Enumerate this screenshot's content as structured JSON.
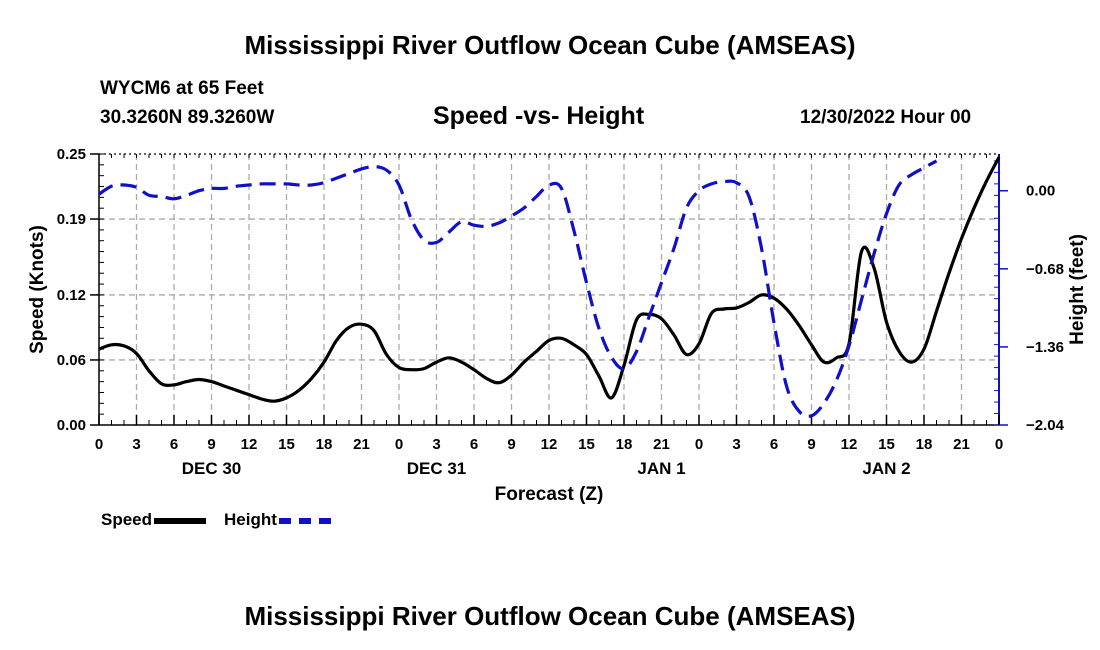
{
  "page": {
    "title_top": "Mississippi River Outflow Ocean Cube (AMSEAS)",
    "title_bottom": "Mississippi River Outflow Ocean Cube (AMSEAS)",
    "station": "WYCM6 at 65 Feet",
    "coords": "30.3260N  89.3260W",
    "subtitle": "Speed -vs- Height",
    "datetime": "12/30/2022 Hour 00"
  },
  "legend": {
    "speed_label": "Speed",
    "height_label": "Height"
  },
  "colors": {
    "speed": "#000000",
    "height": "#1010c8",
    "grid": "#aaaaaa"
  },
  "chart_data": {
    "type": "line",
    "title": "Speed -vs- Height",
    "xlabel": "Forecast (Z)",
    "ylabel": "Speed (Knots)",
    "y2label": "Height (feet)",
    "x_range": [
      0,
      72
    ],
    "ylim": [
      0,
      0.25
    ],
    "y2lim": [
      -2.04,
      0.32
    ],
    "y_ticks": [
      0.0,
      0.06,
      0.12,
      0.19,
      0.25
    ],
    "y_tick_labels": [
      "0.00",
      "0.06",
      "0.12",
      "0.19",
      "0.25"
    ],
    "y2_ticks": [
      0.0,
      -0.68,
      -1.36,
      -2.04
    ],
    "y2_tick_labels": [
      "0.00",
      "−0.68",
      "−1.36",
      "−2.04"
    ],
    "x_ticks": [
      0,
      3,
      6,
      9,
      12,
      15,
      18,
      21,
      24,
      27,
      30,
      33,
      36,
      39,
      42,
      45,
      48,
      51,
      54,
      57,
      60,
      63,
      66,
      69,
      72
    ],
    "x_tick_labels": [
      "0",
      "3",
      "6",
      "9",
      "12",
      "15",
      "18",
      "21",
      "0",
      "3",
      "6",
      "9",
      "12",
      "15",
      "18",
      "21",
      "0",
      "3",
      "6",
      "9",
      "12",
      "15",
      "18",
      "21",
      "0"
    ],
    "day_labels": [
      {
        "x": 9,
        "label": "DEC 30"
      },
      {
        "x": 27,
        "label": "DEC 31"
      },
      {
        "x": 45,
        "label": "JAN 1"
      },
      {
        "x": 63,
        "label": "JAN 2"
      }
    ],
    "series": [
      {
        "name": "Speed",
        "axis": "left",
        "style": "solid",
        "points": [
          [
            0,
            0.07
          ],
          [
            1,
            0.074
          ],
          [
            2,
            0.073
          ],
          [
            3,
            0.066
          ],
          [
            4,
            0.05
          ],
          [
            5,
            0.038
          ],
          [
            6,
            0.037
          ],
          [
            7,
            0.04
          ],
          [
            8,
            0.042
          ],
          [
            9,
            0.04
          ],
          [
            10,
            0.036
          ],
          [
            11,
            0.032
          ],
          [
            12,
            0.028
          ],
          [
            13,
            0.024
          ],
          [
            14,
            0.022
          ],
          [
            15,
            0.025
          ],
          [
            16,
            0.032
          ],
          [
            17,
            0.043
          ],
          [
            18,
            0.058
          ],
          [
            19,
            0.078
          ],
          [
            20,
            0.09
          ],
          [
            21,
            0.093
          ],
          [
            22,
            0.087
          ],
          [
            23,
            0.065
          ],
          [
            24,
            0.053
          ],
          [
            25,
            0.051
          ],
          [
            26,
            0.052
          ],
          [
            27,
            0.058
          ],
          [
            28,
            0.062
          ],
          [
            29,
            0.058
          ],
          [
            30,
            0.051
          ],
          [
            31,
            0.043
          ],
          [
            32,
            0.039
          ],
          [
            33,
            0.046
          ],
          [
            34,
            0.058
          ],
          [
            35,
            0.068
          ],
          [
            36,
            0.078
          ],
          [
            37,
            0.08
          ],
          [
            38,
            0.074
          ],
          [
            39,
            0.065
          ],
          [
            40,
            0.045
          ],
          [
            41,
            0.025
          ],
          [
            42,
            0.055
          ],
          [
            43,
            0.097
          ],
          [
            44,
            0.102
          ],
          [
            45,
            0.098
          ],
          [
            46,
            0.083
          ],
          [
            47,
            0.065
          ],
          [
            48,
            0.075
          ],
          [
            49,
            0.103
          ],
          [
            50,
            0.107
          ],
          [
            51,
            0.108
          ],
          [
            52,
            0.113
          ],
          [
            53,
            0.12
          ],
          [
            54,
            0.117
          ],
          [
            55,
            0.107
          ],
          [
            56,
            0.092
          ],
          [
            57,
            0.074
          ],
          [
            58,
            0.058
          ],
          [
            59,
            0.062
          ],
          [
            60,
            0.075
          ],
          [
            61,
            0.16
          ],
          [
            62,
            0.145
          ],
          [
            63,
            0.095
          ],
          [
            64,
            0.068
          ],
          [
            65,
            0.058
          ],
          [
            66,
            0.07
          ],
          [
            67,
            0.105
          ],
          [
            68,
            0.14
          ],
          [
            69,
            0.172
          ],
          [
            70,
            0.2
          ],
          [
            71,
            0.225
          ],
          [
            72,
            0.247
          ]
        ]
      },
      {
        "name": "Height",
        "axis": "right",
        "style": "dashed",
        "points": [
          [
            0,
            -0.03
          ],
          [
            1,
            0.04
          ],
          [
            2,
            0.05
          ],
          [
            3,
            0.03
          ],
          [
            4,
            -0.04
          ],
          [
            5,
            -0.05
          ],
          [
            6,
            -0.07
          ],
          [
            7,
            -0.04
          ],
          [
            8,
            0.0
          ],
          [
            9,
            0.02
          ],
          [
            10,
            0.02
          ],
          [
            11,
            0.04
          ],
          [
            12,
            0.05
          ],
          [
            13,
            0.06
          ],
          [
            14,
            0.06
          ],
          [
            15,
            0.06
          ],
          [
            16,
            0.05
          ],
          [
            17,
            0.05
          ],
          [
            18,
            0.07
          ],
          [
            19,
            0.11
          ],
          [
            20,
            0.15
          ],
          [
            21,
            0.19
          ],
          [
            22,
            0.21
          ],
          [
            23,
            0.18
          ],
          [
            24,
            0.05
          ],
          [
            25,
            -0.25
          ],
          [
            26,
            -0.43
          ],
          [
            27,
            -0.45
          ],
          [
            28,
            -0.36
          ],
          [
            29,
            -0.27
          ],
          [
            30,
            -0.3
          ],
          [
            31,
            -0.31
          ],
          [
            32,
            -0.28
          ],
          [
            33,
            -0.22
          ],
          [
            34,
            -0.15
          ],
          [
            35,
            -0.05
          ],
          [
            36,
            0.05
          ],
          [
            37,
            0.02
          ],
          [
            38,
            -0.35
          ],
          [
            39,
            -0.8
          ],
          [
            40,
            -1.2
          ],
          [
            41,
            -1.45
          ],
          [
            42,
            -1.55
          ],
          [
            43,
            -1.4
          ],
          [
            44,
            -1.1
          ],
          [
            45,
            -0.8
          ],
          [
            46,
            -0.5
          ],
          [
            47,
            -0.15
          ],
          [
            48,
            0.0
          ],
          [
            49,
            0.06
          ],
          [
            50,
            0.08
          ],
          [
            51,
            0.07
          ],
          [
            52,
            -0.05
          ],
          [
            53,
            -0.5
          ],
          [
            54,
            -1.15
          ],
          [
            55,
            -1.7
          ],
          [
            56,
            -1.92
          ],
          [
            57,
            -1.96
          ],
          [
            58,
            -1.85
          ],
          [
            59,
            -1.65
          ],
          [
            60,
            -1.35
          ],
          [
            61,
            -0.95
          ],
          [
            62,
            -0.55
          ],
          [
            63,
            -0.2
          ],
          [
            64,
            0.05
          ],
          [
            65,
            0.14
          ],
          [
            66,
            0.2
          ],
          [
            67,
            0.26
          ]
        ]
      }
    ]
  }
}
